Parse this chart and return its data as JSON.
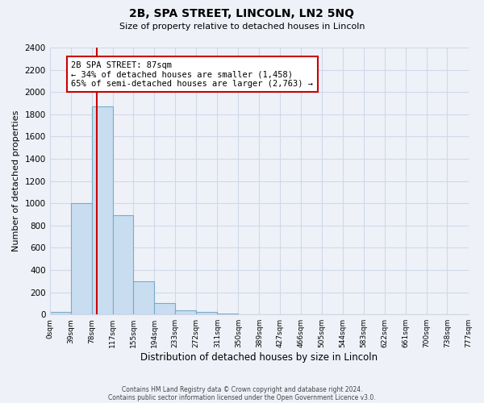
{
  "title": "2B, SPA STREET, LINCOLN, LN2 5NQ",
  "subtitle": "Size of property relative to detached houses in Lincoln",
  "xlabel": "Distribution of detached houses by size in Lincoln",
  "ylabel": "Number of detached properties",
  "bar_values": [
    20,
    1000,
    1870,
    890,
    300,
    100,
    40,
    20,
    10,
    0,
    0,
    0,
    0,
    0,
    0,
    0,
    0,
    0,
    0,
    0
  ],
  "bin_edges": [
    0,
    39,
    78,
    117,
    155,
    194,
    233,
    272,
    311,
    350,
    389,
    427,
    466,
    505,
    544,
    583,
    622,
    661,
    700,
    738,
    777
  ],
  "tick_labels": [
    "0sqm",
    "39sqm",
    "78sqm",
    "117sqm",
    "155sqm",
    "194sqm",
    "233sqm",
    "272sqm",
    "311sqm",
    "350sqm",
    "389sqm",
    "427sqm",
    "466sqm",
    "505sqm",
    "544sqm",
    "583sqm",
    "622sqm",
    "661sqm",
    "700sqm",
    "738sqm",
    "777sqm"
  ],
  "property_line_x": 87,
  "bar_color": "#c8ddf0",
  "bar_edge_color": "#7aaac8",
  "vline_color": "#cc0000",
  "annotation_line1": "2B SPA STREET: 87sqm",
  "annotation_line2": "← 34% of detached houses are smaller (1,458)",
  "annotation_line3": "65% of semi-detached houses are larger (2,763) →",
  "annotation_box_color": "#ffffff",
  "annotation_box_edge": "#cc0000",
  "ylim": [
    0,
    2400
  ],
  "yticks": [
    0,
    200,
    400,
    600,
    800,
    1000,
    1200,
    1400,
    1600,
    1800,
    2000,
    2200,
    2400
  ],
  "grid_color": "#d0d8e8",
  "background_color": "#eef2f8",
  "footer_line1": "Contains HM Land Registry data © Crown copyright and database right 2024.",
  "footer_line2": "Contains public sector information licensed under the Open Government Licence v3.0."
}
